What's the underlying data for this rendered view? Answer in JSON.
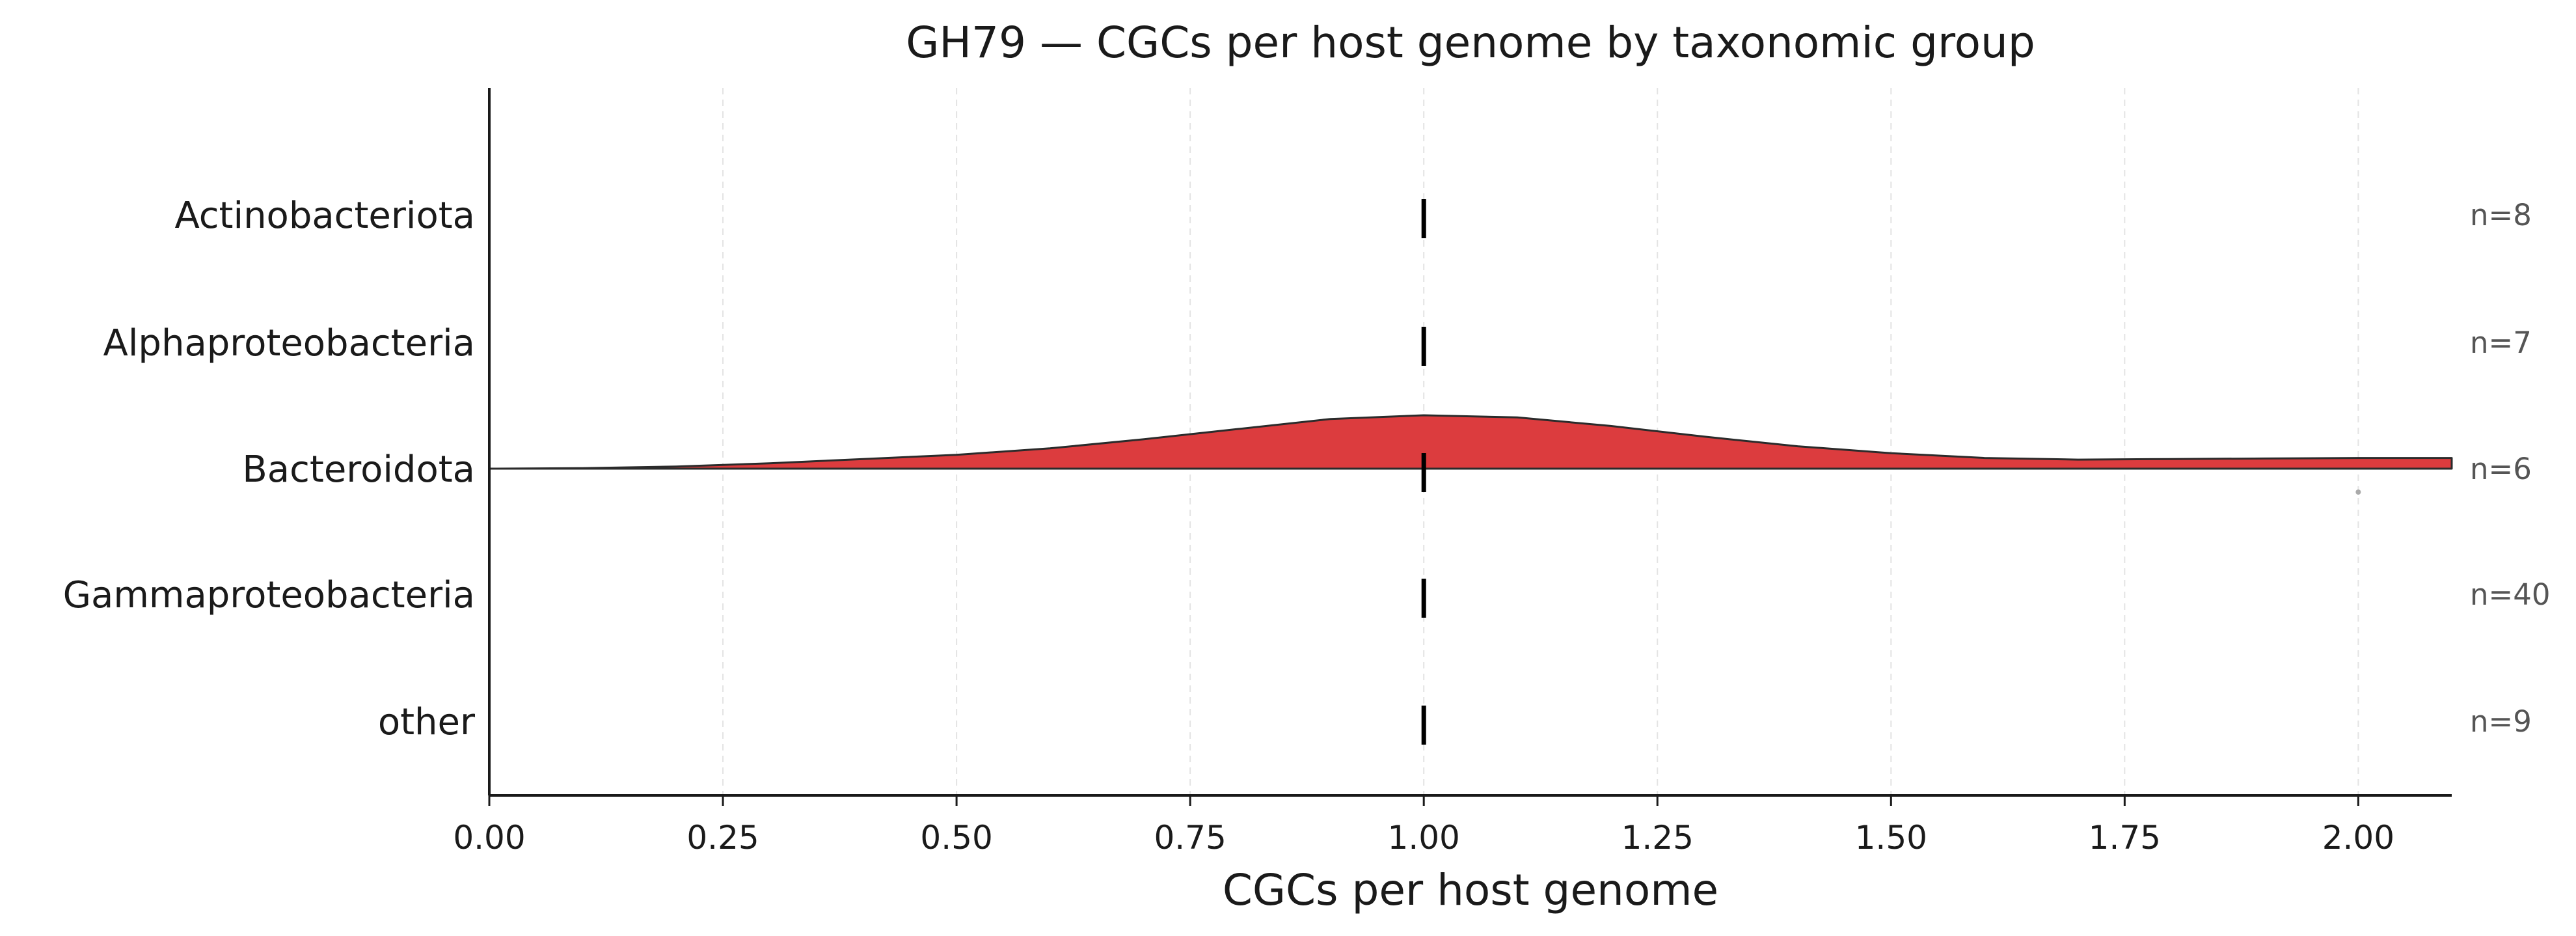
{
  "chart_data": {
    "type": "violin",
    "title": "GH79 — CGCs per host genome by taxonomic group",
    "xlabel": "CGCs per host genome",
    "ylabel": "",
    "xlim": [
      0.0,
      2.1
    ],
    "xticks": [
      0.0,
      0.25,
      0.5,
      0.75,
      1.0,
      1.25,
      1.5,
      1.75,
      2.0
    ],
    "xtick_labels": [
      "0.00",
      "0.25",
      "0.50",
      "0.75",
      "1.00",
      "1.25",
      "1.50",
      "1.75",
      "2.00"
    ],
    "grid": "x, dashed, light",
    "categories": [
      "Actinobacteriota",
      "Alphaproteobacteria",
      "Bacteroidota",
      "Gammaproteobacteria",
      "other"
    ],
    "counts": [
      "n=8",
      "n=7",
      "n=6",
      "n=40",
      "n=9"
    ],
    "medians": [
      1.0,
      1.0,
      1.0,
      1.0,
      1.0
    ],
    "density": {
      "category": "Bacteroidota",
      "color": "#dc3c3e",
      "x": [
        0.0,
        0.1,
        0.2,
        0.3,
        0.4,
        0.5,
        0.6,
        0.7,
        0.8,
        0.9,
        1.0,
        1.1,
        1.2,
        1.3,
        1.4,
        1.5,
        1.6,
        1.7,
        1.8,
        1.9,
        2.0,
        2.1
      ],
      "y": [
        0.0,
        0.01,
        0.04,
        0.1,
        0.18,
        0.26,
        0.38,
        0.55,
        0.74,
        0.93,
        1.0,
        0.96,
        0.8,
        0.6,
        0.42,
        0.29,
        0.2,
        0.17,
        0.18,
        0.19,
        0.2,
        0.2
      ]
    },
    "outliers": [
      {
        "category": "Bacteroidota",
        "x": 2.0
      }
    ]
  }
}
